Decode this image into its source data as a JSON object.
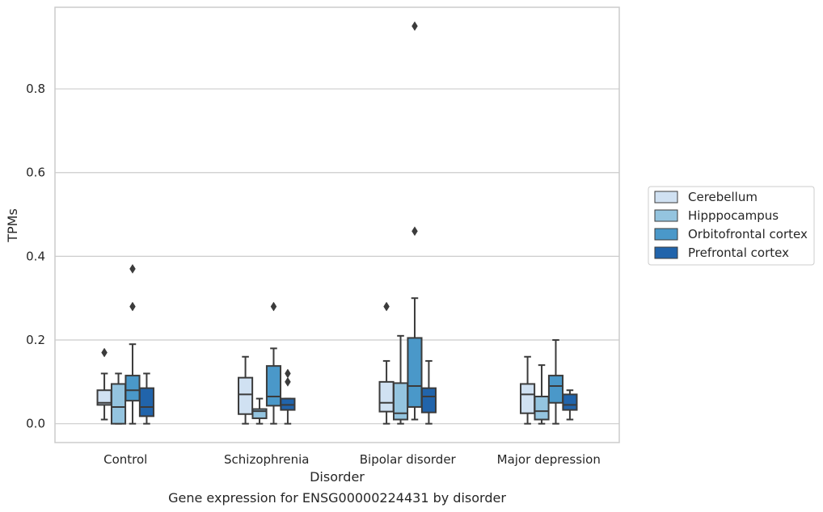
{
  "chart_data": {
    "type": "box",
    "title": "",
    "caption": "Gene expression for ENSG00000224431 by disorder",
    "xlabel": "Disorder",
    "ylabel": "TPMs",
    "ylim": [
      -0.045,
      0.995
    ],
    "yticks": [
      0.0,
      0.2,
      0.4,
      0.6,
      0.8
    ],
    "ytick_labels": [
      "0.0",
      "0.2",
      "0.4",
      "0.6",
      "0.8"
    ],
    "grid": "horizontal",
    "legend_position": "right",
    "categories": [
      "Control",
      "Schizophrenia",
      "Bipolar disorder",
      "Major depression"
    ],
    "series": [
      {
        "name": "Cerebellum",
        "color": "#d0e1f2",
        "boxes": [
          {
            "whislo": 0.01,
            "q1": 0.045,
            "med": 0.05,
            "q3": 0.08,
            "whishi": 0.12,
            "fliers": [
              0.17
            ]
          },
          {
            "whislo": 0.0,
            "q1": 0.023,
            "med": 0.07,
            "q3": 0.11,
            "whishi": 0.16,
            "fliers": []
          },
          {
            "whislo": 0.0,
            "q1": 0.029,
            "med": 0.05,
            "q3": 0.1,
            "whishi": 0.15,
            "fliers": [
              0.28
            ]
          },
          {
            "whislo": 0.0,
            "q1": 0.025,
            "med": 0.07,
            "q3": 0.095,
            "whishi": 0.16,
            "fliers": []
          }
        ]
      },
      {
        "name": "Hipppocampus",
        "color": "#94c4df",
        "boxes": [
          {
            "whislo": 0.0,
            "q1": 0.0,
            "med": 0.04,
            "q3": 0.095,
            "whishi": 0.12,
            "fliers": []
          },
          {
            "whislo": 0.0,
            "q1": 0.013,
            "med": 0.03,
            "q3": 0.035,
            "whishi": 0.06,
            "fliers": []
          },
          {
            "whislo": 0.0,
            "q1": 0.01,
            "med": 0.025,
            "q3": 0.097,
            "whishi": 0.21,
            "fliers": []
          },
          {
            "whislo": 0.0,
            "q1": 0.01,
            "med": 0.03,
            "q3": 0.065,
            "whishi": 0.14,
            "fliers": []
          }
        ]
      },
      {
        "name": "Orbitofrontal cortex",
        "color": "#4a98c9",
        "boxes": [
          {
            "whislo": 0.0,
            "q1": 0.055,
            "med": 0.08,
            "q3": 0.115,
            "whishi": 0.19,
            "fliers": [
              0.28,
              0.37
            ]
          },
          {
            "whislo": 0.0,
            "q1": 0.043,
            "med": 0.065,
            "q3": 0.138,
            "whishi": 0.18,
            "fliers": [
              0.28
            ]
          },
          {
            "whislo": 0.01,
            "q1": 0.04,
            "med": 0.09,
            "q3": 0.205,
            "whishi": 0.3,
            "fliers": [
              0.46,
              0.95
            ]
          },
          {
            "whislo": 0.0,
            "q1": 0.05,
            "med": 0.09,
            "q3": 0.115,
            "whishi": 0.2,
            "fliers": []
          }
        ]
      },
      {
        "name": "Prefrontal cortex",
        "color": "#2164ab",
        "boxes": [
          {
            "whislo": 0.0,
            "q1": 0.018,
            "med": 0.04,
            "q3": 0.085,
            "whishi": 0.12,
            "fliers": []
          },
          {
            "whislo": 0.0,
            "q1": 0.033,
            "med": 0.045,
            "q3": 0.06,
            "whishi": 0.06,
            "fliers": [
              0.1,
              0.12
            ]
          },
          {
            "whislo": 0.0,
            "q1": 0.027,
            "med": 0.065,
            "q3": 0.085,
            "whishi": 0.15,
            "fliers": []
          },
          {
            "whislo": 0.01,
            "q1": 0.033,
            "med": 0.045,
            "q3": 0.07,
            "whishi": 0.08,
            "fliers": []
          }
        ]
      }
    ]
  },
  "colors": {
    "line": "#3b3b3b",
    "grid": "#cccccc",
    "frame": "#cccccc"
  }
}
